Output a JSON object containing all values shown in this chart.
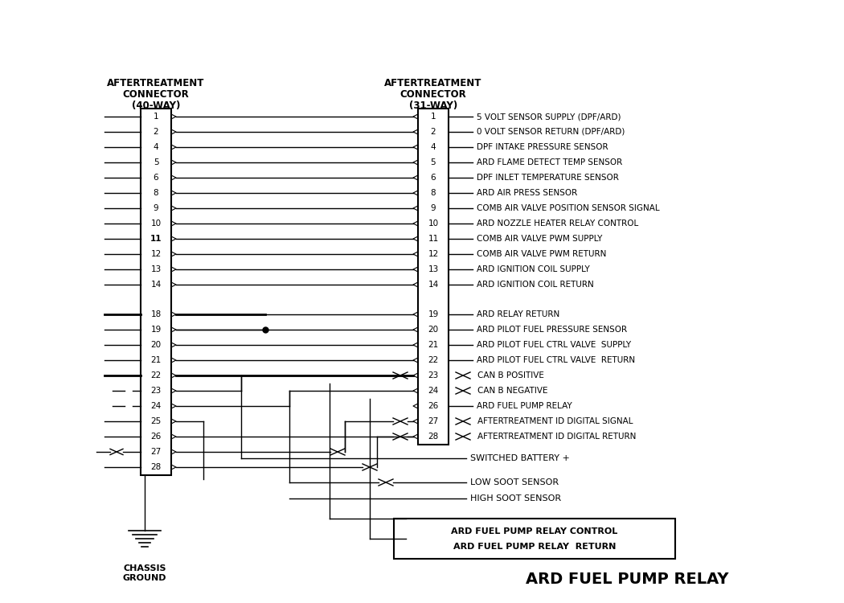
{
  "title": "ARD FUEL PUMP RELAY",
  "bg_color": "#ffffff",
  "left_connector_title": [
    "AFTERTREATMENT",
    "CONNECTOR",
    "(40-WAY)"
  ],
  "right_connector_title": [
    "AFTERTREATMENT",
    "CONNECTOR",
    "(31-WAY)"
  ],
  "left_pins": [
    1,
    2,
    4,
    5,
    6,
    8,
    9,
    10,
    11,
    12,
    13,
    14,
    18,
    19,
    20,
    21,
    22,
    23,
    24,
    25,
    26,
    27,
    28
  ],
  "right_pins": [
    1,
    2,
    4,
    5,
    6,
    8,
    9,
    10,
    11,
    12,
    13,
    14,
    19,
    20,
    21,
    22,
    23,
    24,
    26,
    27,
    28
  ],
  "right_labels": [
    "5 VOLT SENSOR SUPPLY (DPF/ARD)",
    "0 VOLT SENSOR RETURN (DPF/ARD)",
    "DPF INTAKE PRESSURE SENSOR",
    "ARD FLAME DETECT TEMP SENSOR",
    "DPF INLET TEMPERATURE SENSOR",
    "ARD AIR PRESS SENSOR",
    "COMB AIR VALVE POSITION SENSOR SIGNAL",
    "ARD NOZZLE HEATER RELAY CONTROL",
    "COMB AIR VALVE PWM SUPPLY",
    "COMB AIR VALVE PWM RETURN",
    "ARD IGNITION COIL SUPPLY",
    "ARD IGNITION COIL RETURN",
    "ARD RELAY RETURN",
    "ARD PILOT FUEL PRESSURE SENSOR",
    "ARD PILOT FUEL CTRL VALVE  SUPPLY",
    "ARD PILOT FUEL CTRL VALVE  RETURN",
    "CAN B POSITIVE",
    "CAN B NEGATIVE",
    "ARD FUEL PUMP RELAY",
    "AFTERTREATMENT ID DIGITAL SIGNAL",
    "AFTERTREATMENT ID DIGITAL RETURN"
  ],
  "bottom_labels": [
    "SWITCHED BATTERY +",
    "LOW SOOT SENSOR",
    "HIGH SOOT SENSOR"
  ],
  "relay_box_labels": [
    "ARD FUEL PUMP RELAY CONTROL",
    "ARD FUEL PUMP RELAY  RETURN"
  ],
  "chassis_ground_label": "CHASSIS\nGROUND"
}
